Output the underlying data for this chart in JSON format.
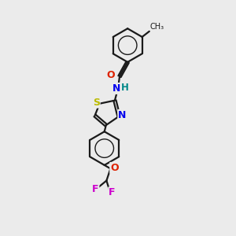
{
  "bg_color": "#ebebeb",
  "bond_color": "#1a1a1a",
  "atom_colors": {
    "O": "#dd2200",
    "N": "#0000ee",
    "S": "#bbbb00",
    "F": "#cc00cc",
    "H": "#008888",
    "C": "#1a1a1a"
  }
}
